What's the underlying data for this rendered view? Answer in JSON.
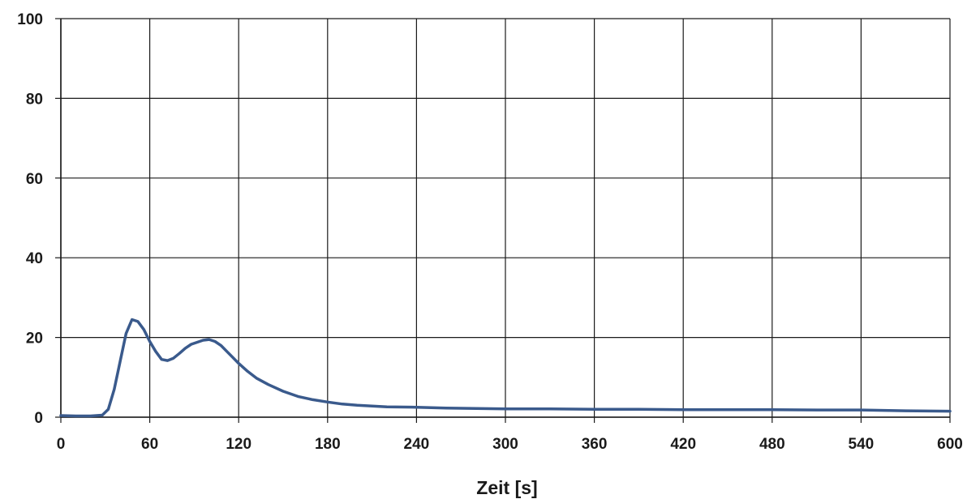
{
  "chart_data": {
    "type": "line",
    "title": "",
    "xlabel": "Zeit [s]",
    "ylabel": "",
    "xlim": [
      0,
      600
    ],
    "ylim": [
      0,
      100
    ],
    "x_ticks": [
      "0",
      "60",
      "120",
      "180",
      "240",
      "300",
      "360",
      "420",
      "480",
      "540",
      "600"
    ],
    "y_ticks": [
      "0",
      "20",
      "40",
      "60",
      "80",
      "100"
    ],
    "grid": true,
    "legend": "none",
    "colors": {
      "line": "#3a5a8c",
      "grid": "#1a1a1a"
    },
    "series": [
      {
        "x": [
          0,
          10,
          20,
          28,
          32,
          36,
          40,
          44,
          48,
          52,
          56,
          60,
          64,
          68,
          72,
          76,
          80,
          84,
          88,
          92,
          96,
          100,
          104,
          108,
          112,
          116,
          120,
          126,
          132,
          140,
          150,
          160,
          170,
          180,
          190,
          200,
          210,
          220,
          240,
          260,
          280,
          300,
          330,
          360,
          390,
          420,
          450,
          480,
          510,
          540,
          570,
          600
        ],
        "y": [
          0.4,
          0.3,
          0.3,
          0.5,
          2,
          7,
          14,
          21,
          24.5,
          24,
          22,
          19,
          16.5,
          14.5,
          14.2,
          14.8,
          16,
          17.3,
          18.3,
          18.8,
          19.3,
          19.5,
          19,
          18,
          16.5,
          15,
          13.5,
          11.5,
          9.8,
          8.2,
          6.5,
          5.2,
          4.4,
          3.8,
          3.3,
          3,
          2.8,
          2.6,
          2.5,
          2.3,
          2.2,
          2.1,
          2.1,
          2.0,
          2.0,
          1.9,
          1.9,
          1.9,
          1.8,
          1.8,
          1.6,
          1.5
        ]
      }
    ]
  }
}
